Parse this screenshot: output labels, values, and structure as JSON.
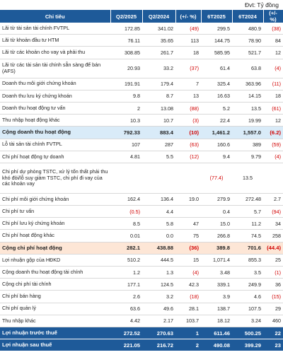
{
  "unit_note": "Đvt: Tỷ đồng",
  "columns": [
    "Chỉ tiêu",
    "Q2/2025",
    "Q2/2024",
    "(+/- %)",
    "6T2025",
    "6T2024",
    "(+/- %)"
  ],
  "rows": [
    {
      "label": "Lãi từ tài sản tài chính FVTPL",
      "values": [
        "172.85",
        "341.02",
        "(49)",
        "299.5",
        "480.9",
        "(38)"
      ]
    },
    {
      "label": "Lãi từ khoản đầu tư HTM",
      "values": [
        "76.11",
        "35.65",
        "113",
        "144.75",
        "78.90",
        "84"
      ]
    },
    {
      "label": "Lãi từ các khoản cho vay và phải thu",
      "values": [
        "308.85",
        "261.7",
        "18",
        "585.95",
        "521.7",
        "12"
      ]
    },
    {
      "label": "Lãi từ các tài sản tài chính sẵn sàng để bán (AFS)",
      "values": [
        "20.93",
        "33.2",
        "(37)",
        "61.4",
        "63.8",
        "(4)"
      ]
    },
    {
      "label": "Doanh thu môi giới chứng khoán",
      "values": [
        "191.91",
        "179.4",
        "7",
        "325.4",
        "363.96",
        "(11)"
      ]
    },
    {
      "label": "Doanh thu lưu ký chứng khoán",
      "values": [
        "9.8",
        "8.7",
        "13",
        "16.63",
        "14.15",
        "18"
      ]
    },
    {
      "label": "Doanh thu hoạt động tư vấn",
      "values": [
        "2",
        "13.08",
        "(88)",
        "5.2",
        "13.5",
        "(61)"
      ]
    },
    {
      "label": "Thu nhập hoạt động khác",
      "values": [
        "10.3",
        "10.7",
        "(3)",
        "22.4",
        "19.99",
        "12"
      ]
    },
    {
      "label": "Cộng doanh thu hoạt động",
      "values": [
        "792.33",
        "883.4",
        "(10)",
        "1,461.2",
        "1,557.0",
        "(6.2)"
      ]
    },
    {
      "label": "Lỗ tài sản tài chính FVTPL",
      "values": [
        "107",
        "287",
        "(63)",
        "160.6",
        "389",
        "(59)"
      ]
    },
    {
      "label": "Chi phí hoạt động tự doanh",
      "values": [
        "4.81",
        "5.5",
        "(12)",
        "9.4",
        "9.79",
        "(4)"
      ]
    },
    {
      "label": "Chi phí dự phòng TSTC, xử lý tổn thất phải thu khó đòi/lỗ suy giảm TSTC, chi phí đi vay của các khoản vay",
      "values": [
        "",
        "",
        "",
        "(77.4)",
        "13.5",
        ""
      ]
    },
    {
      "label": "Chi phí môi giới chứng khoán",
      "values": [
        "162.4",
        "136.4",
        "19.0",
        "279.9",
        "272.48",
        "2.7"
      ]
    },
    {
      "label": "Chi phí tư vấn",
      "values": [
        "(0.5)",
        "4.4",
        "",
        "0.4",
        "5.7",
        "(94)"
      ]
    },
    {
      "label": "Chi phí lưu ký chứng khoán",
      "values": [
        "8.5",
        "5.8",
        "47",
        "15.0",
        "11.2",
        "34"
      ]
    },
    {
      "label": "Chi phí hoạt động khác",
      "values": [
        "0.01",
        "0.0",
        "75",
        "266.8",
        "74.5",
        "258"
      ]
    },
    {
      "label": "Cộng chi phí hoạt động",
      "values": [
        "282.1",
        "438.88",
        "(36)",
        "389.8",
        "701.6",
        "(44.4)"
      ]
    },
    {
      "label": "Lợi nhuận gộp của HĐKD",
      "values": [
        "510.2",
        "444.5",
        "15",
        "1,071.4",
        "855.3",
        "25"
      ]
    },
    {
      "label": "Cộng doanh thu hoạt động tài chính",
      "values": [
        "1.2",
        "1.3",
        "(4)",
        "3.48",
        "3.5",
        "(1)"
      ]
    },
    {
      "label": "Cộng chi phí tài chính",
      "values": [
        "177.1",
        "124.5",
        "42.3",
        "339.1",
        "249.9",
        "36"
      ]
    },
    {
      "label": "Chi phí bán hàng",
      "values": [
        "2.6",
        "3.2",
        "(18)",
        "3.9",
        "4.6",
        "(15)"
      ]
    },
    {
      "label": "Chi phí quản lý",
      "values": [
        "63.6",
        "49.6",
        "28.1",
        "138.7",
        "107.5",
        "29"
      ]
    },
    {
      "label": "Thu nhập khác",
      "values": [
        "4.42",
        "2.17",
        "103.7",
        "18.12",
        "3.24",
        "460"
      ]
    },
    {
      "label": "Lợi nhuận trước thuế",
      "values": [
        "272.52",
        "270.63",
        "1",
        "611.46",
        "500.25",
        "22"
      ]
    },
    {
      "label": "Lợi nhuận sau thuế",
      "values": [
        "221.05",
        "216.72",
        "2",
        "490.08",
        "399.29",
        "23"
      ]
    }
  ]
}
